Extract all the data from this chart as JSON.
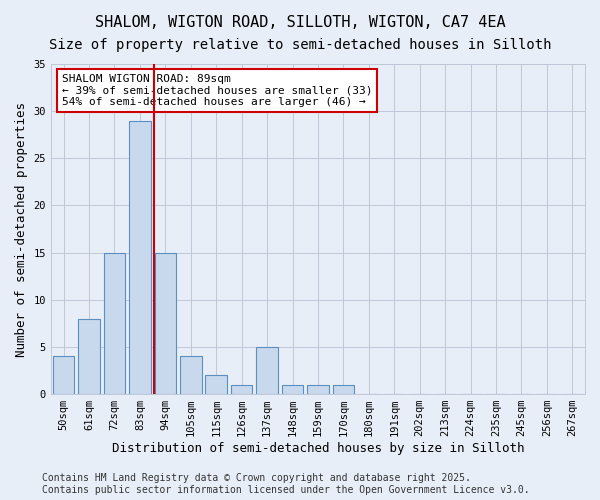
{
  "title": "SHALOM, WIGTON ROAD, SILLOTH, WIGTON, CA7 4EA",
  "subtitle": "Size of property relative to semi-detached houses in Silloth",
  "xlabel": "Distribution of semi-detached houses by size in Silloth",
  "ylabel": "Number of semi-detached properties",
  "bins": [
    "50sqm",
    "61sqm",
    "72sqm",
    "83sqm",
    "94sqm",
    "105sqm",
    "115sqm",
    "126sqm",
    "137sqm",
    "148sqm",
    "159sqm",
    "170sqm",
    "180sqm",
    "191sqm",
    "202sqm",
    "213sqm",
    "224sqm",
    "235sqm",
    "245sqm",
    "256sqm",
    "267sqm"
  ],
  "values": [
    4,
    8,
    15,
    29,
    15,
    4,
    2,
    1,
    5,
    1,
    1,
    1,
    0,
    0,
    0,
    0,
    0,
    0,
    0,
    0,
    0
  ],
  "bar_color": "#c8d9ed",
  "bar_edge_color": "#5a8fc2",
  "grid_color": "#c0c8d8",
  "background_color": "#e8eef8",
  "property_sqm": 89,
  "property_bin_index": 3,
  "annotation_title": "SHALOM WIGTON ROAD: 89sqm",
  "annotation_line1": "← 39% of semi-detached houses are smaller (33)",
  "annotation_line2": "54% of semi-detached houses are larger (46) →",
  "annotation_box_color": "#cc0000",
  "vline_color": "#cc0000",
  "footer_line1": "Contains HM Land Registry data © Crown copyright and database right 2025.",
  "footer_line2": "Contains public sector information licensed under the Open Government Licence v3.0.",
  "ylim": [
    0,
    35
  ],
  "yticks": [
    0,
    5,
    10,
    15,
    20,
    25,
    30,
    35
  ],
  "title_fontsize": 11,
  "subtitle_fontsize": 10,
  "axis_label_fontsize": 9,
  "tick_fontsize": 7.5,
  "footer_fontsize": 7,
  "annotation_fontsize": 8
}
